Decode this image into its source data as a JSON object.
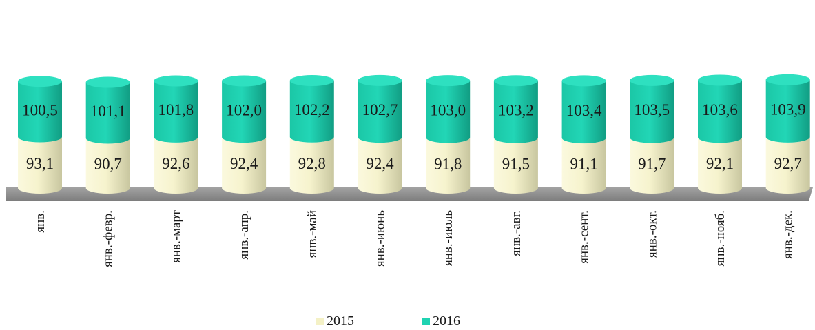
{
  "chart_data": {
    "type": "bar",
    "stacked": true,
    "style": "3d-cylinder",
    "categories": [
      "янв.",
      "янв.-февр.",
      "янв.-март",
      "янв.-апр.",
      "янв.-май",
      "янв.-июнь",
      "янв.-июль",
      "янв.-авг.",
      "янв.-сент.",
      "янв.-окт.",
      "янв.-нояб.",
      "янв.-дек."
    ],
    "series": [
      {
        "name": "2015",
        "values": [
          93.1,
          90.7,
          92.6,
          92.4,
          92.8,
          92.4,
          91.8,
          91.5,
          91.1,
          91.7,
          92.1,
          92.7
        ],
        "labels": [
          "93,1",
          "90,7",
          "92,6",
          "92,4",
          "92,8",
          "92,4",
          "91,8",
          "91,5",
          "91,1",
          "91,7",
          "92,1",
          "92,7"
        ],
        "color": "#f4f1c6"
      },
      {
        "name": "2016",
        "values": [
          100.5,
          101.1,
          101.8,
          102.0,
          102.2,
          102.7,
          103.0,
          103.2,
          103.4,
          103.5,
          103.6,
          103.9
        ],
        "labels": [
          "100,5",
          "101,1",
          "101,8",
          "102,0",
          "102,2",
          "102,7",
          "103,0",
          "103,2",
          "103,4",
          "103,5",
          "103,6",
          "103,9"
        ],
        "color": "#1fd3b2"
      }
    ],
    "legend_position": "bottom",
    "grid": false,
    "floor_color": "#8f8f8f",
    "title": "",
    "xlabel": "",
    "ylabel": ""
  }
}
